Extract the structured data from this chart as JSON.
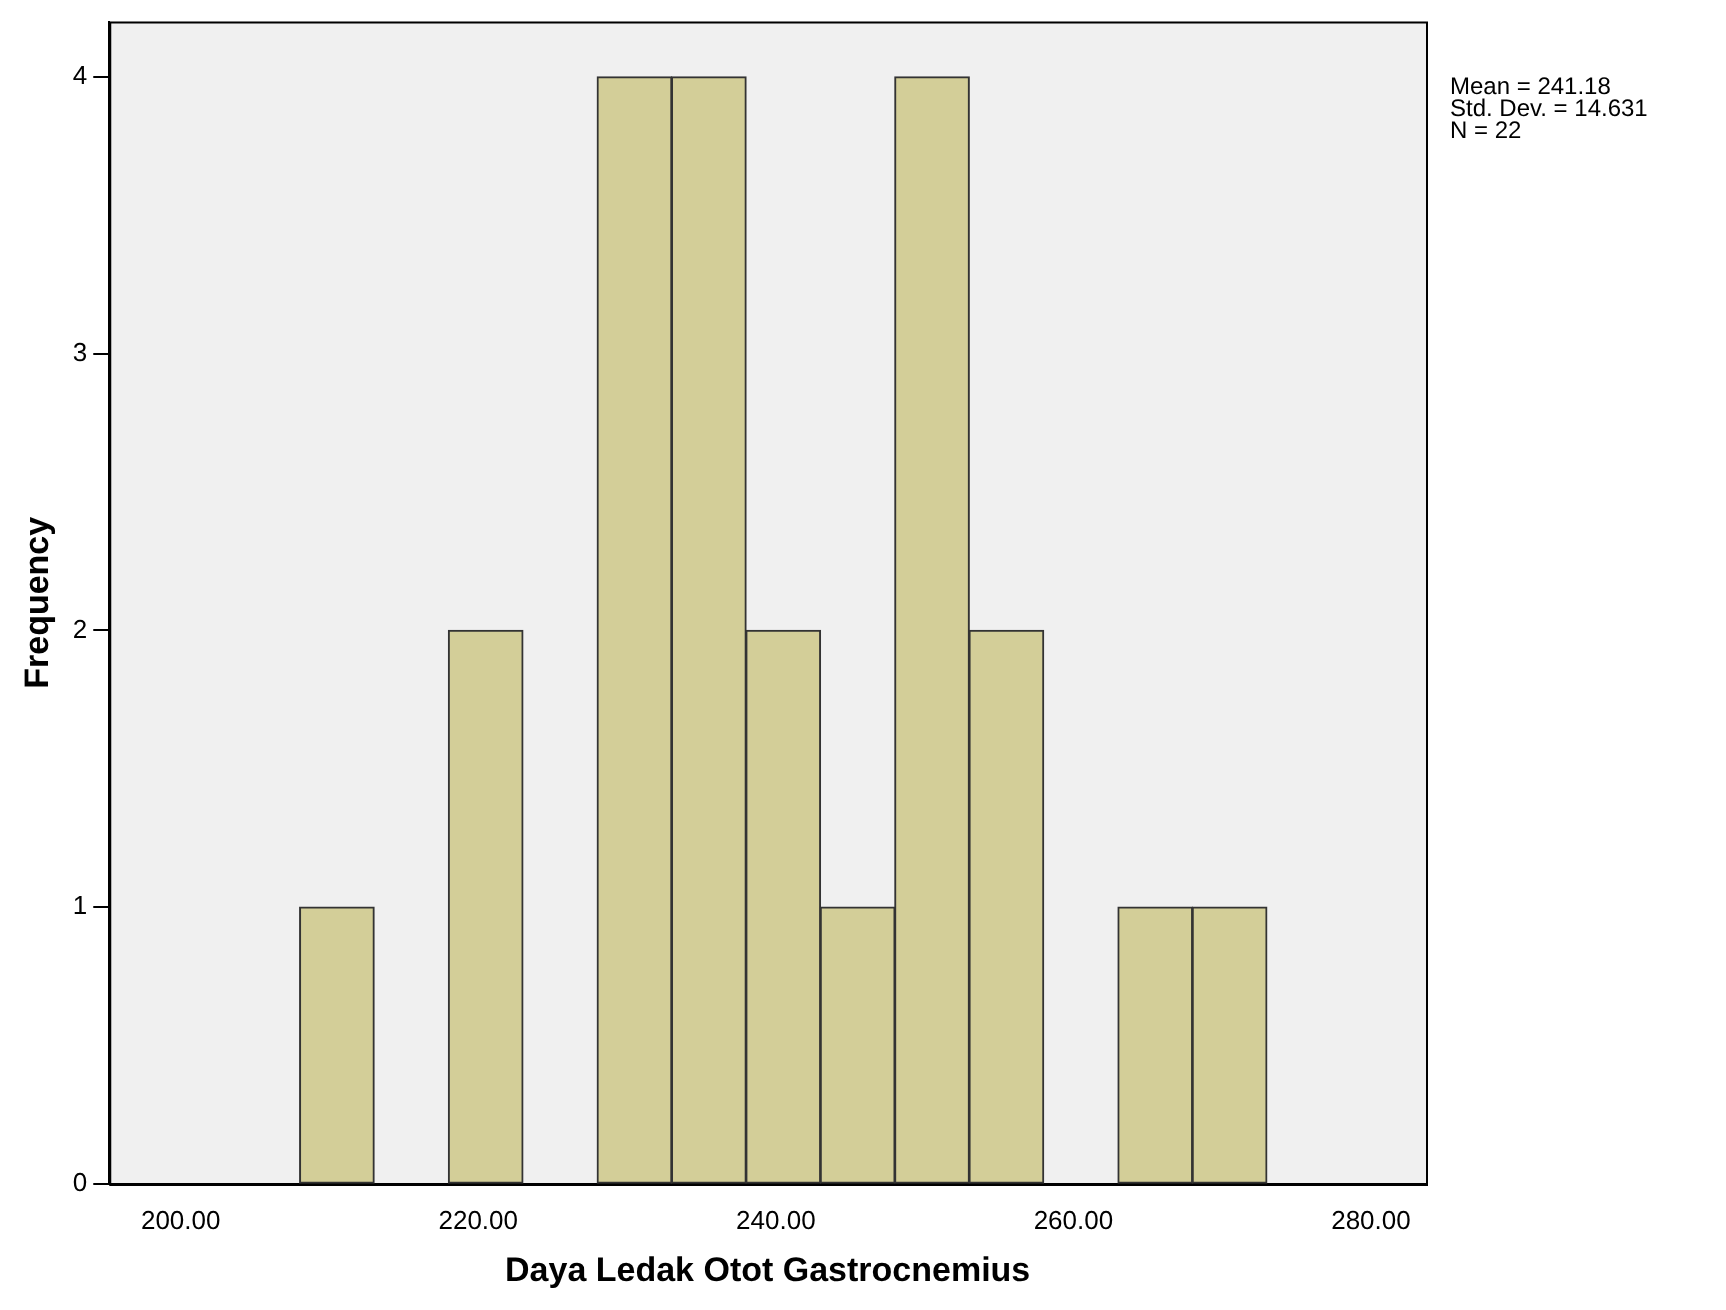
{
  "chart_data": {
    "type": "histogram",
    "xlabel": "Daya Ledak Otot Gastrocnemius",
    "ylabel": "Frequency",
    "bins": [
      208,
      213,
      218,
      223,
      228,
      233,
      238,
      243,
      248,
      253,
      258,
      263,
      268,
      273
    ],
    "values": [
      1,
      0,
      2,
      0,
      4,
      4,
      2,
      1,
      4,
      2,
      0,
      1,
      1
    ],
    "color": "#d3ce98",
    "xlim": [
      195.2,
      283.7
    ],
    "xticks": [
      {
        "value": 200,
        "label": "200.00"
      },
      {
        "value": 220,
        "label": "220.00"
      },
      {
        "value": 240,
        "label": "240.00"
      },
      {
        "value": 260,
        "label": "260.00"
      },
      {
        "value": 280,
        "label": "280.00"
      }
    ],
    "ylim": [
      0,
      4.2
    ],
    "yticks": [
      0,
      1,
      2,
      3,
      4
    ],
    "grid": false,
    "legend": false,
    "annotations": [
      "Mean = 241.18",
      "Std. Dev. = 14.631",
      "N = 22"
    ]
  }
}
